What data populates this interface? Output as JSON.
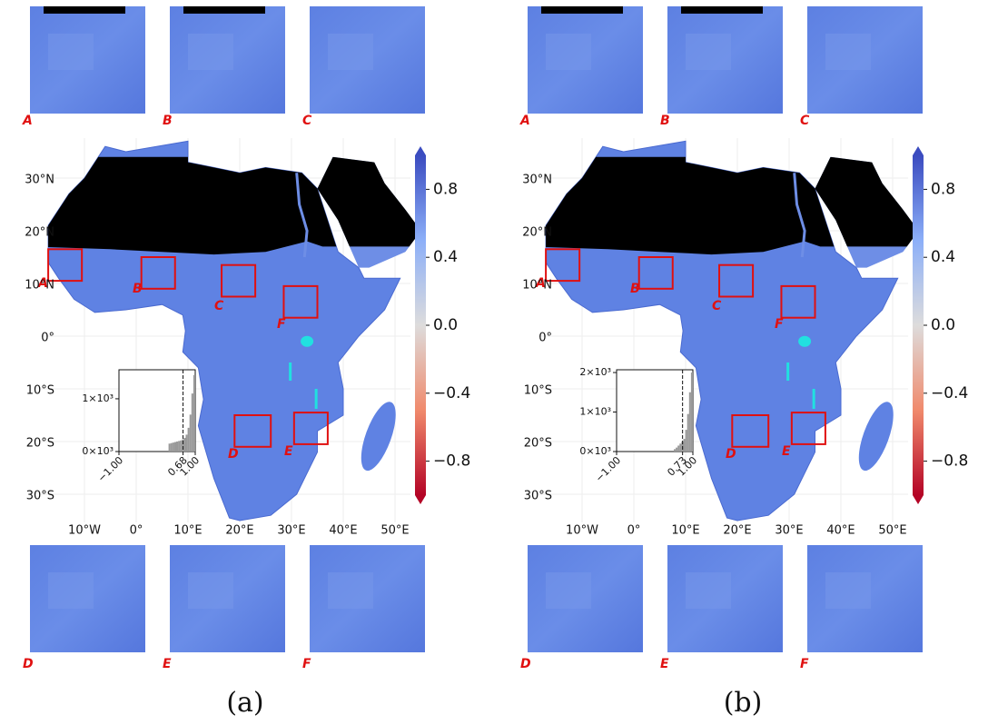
{
  "panels": [
    {
      "label": "(a)",
      "tiles_top": [
        "A",
        "B",
        "C"
      ],
      "tiles_bottom": [
        "D",
        "E",
        "F"
      ],
      "map_boxes": [
        "A",
        "B",
        "C",
        "F",
        "D",
        "E"
      ],
      "lat_ticks": [
        "30°N",
        "20°N",
        "10°N",
        "0°",
        "10°S",
        "20°S",
        "30°S"
      ],
      "lon_ticks": [
        "10°W",
        "0°",
        "10°E",
        "20°E",
        "30°E",
        "40°E",
        "50°E"
      ],
      "colorbar": {
        "ylim": [
          -1,
          1
        ],
        "yticks": [
          0.8,
          0.4,
          {
            "value": 0,
            "label": "0.0"
          },
          {
            "value": -0.4,
            "label": "−0.4"
          },
          {
            "value": -0.8,
            "label": "−0.8"
          }
        ]
      },
      "histogram": {
        "type": "histogram",
        "bins": [
          0.3,
          0.35,
          0.4,
          0.45,
          0.5,
          0.55,
          0.6,
          0.65,
          0.7,
          0.75,
          0.8,
          0.85,
          0.9,
          0.95,
          1.0
        ],
        "counts": [
          150,
          160,
          170,
          180,
          190,
          200,
          210,
          230,
          260,
          320,
          450,
          700,
          1100,
          1450
        ],
        "xlim": [
          -1,
          1
        ],
        "xticks": [
          {
            "value": -1,
            "label": "−1.00"
          },
          0.68,
          {
            "value": 1,
            "label": "1.00"
          }
        ],
        "ylim": [
          0,
          1550
        ],
        "yticks": [
          {
            "value": 0,
            "label": "0×10³"
          },
          {
            "value": 1000,
            "label": "1×10³"
          }
        ]
      }
    },
    {
      "label": "(b)",
      "tiles_top": [
        "A",
        "B",
        "C"
      ],
      "tiles_bottom": [
        "D",
        "E",
        "F"
      ],
      "map_boxes": [
        "A",
        "B",
        "C",
        "F",
        "D",
        "E"
      ],
      "lat_ticks": [
        "30°N",
        "20°N",
        "10°N",
        "0°",
        "10°S",
        "20°S",
        "30°S"
      ],
      "lon_ticks": [
        "10°W",
        "0°",
        "10°E",
        "20°E",
        "30°E",
        "40°E",
        "50°E"
      ],
      "colorbar": {
        "ylim": [
          -1,
          1
        ],
        "yticks": [
          0.8,
          0.4,
          {
            "value": 0,
            "label": "0.0"
          },
          {
            "value": -0.4,
            "label": "−0.4"
          },
          {
            "value": -0.8,
            "label": "−0.8"
          }
        ]
      },
      "histogram": {
        "type": "histogram",
        "bins": [
          0.5,
          0.55,
          0.6,
          0.65,
          0.7,
          0.75,
          0.8,
          0.85,
          0.9,
          0.95,
          1.0
        ],
        "counts": [
          60,
          100,
          150,
          200,
          250,
          320,
          550,
          950,
          1500,
          2000
        ],
        "xlim": [
          -1,
          1
        ],
        "xticks": [
          {
            "value": -1,
            "label": "−1.00"
          },
          0.73,
          {
            "value": 1,
            "label": "1.00"
          }
        ],
        "ylim": [
          0,
          2070
        ],
        "yticks": [
          {
            "value": 0,
            "label": "0×10³"
          },
          {
            "value": 1000,
            "label": "1×10³"
          },
          {
            "value": 2000,
            "label": "2×10³"
          }
        ]
      }
    }
  ]
}
